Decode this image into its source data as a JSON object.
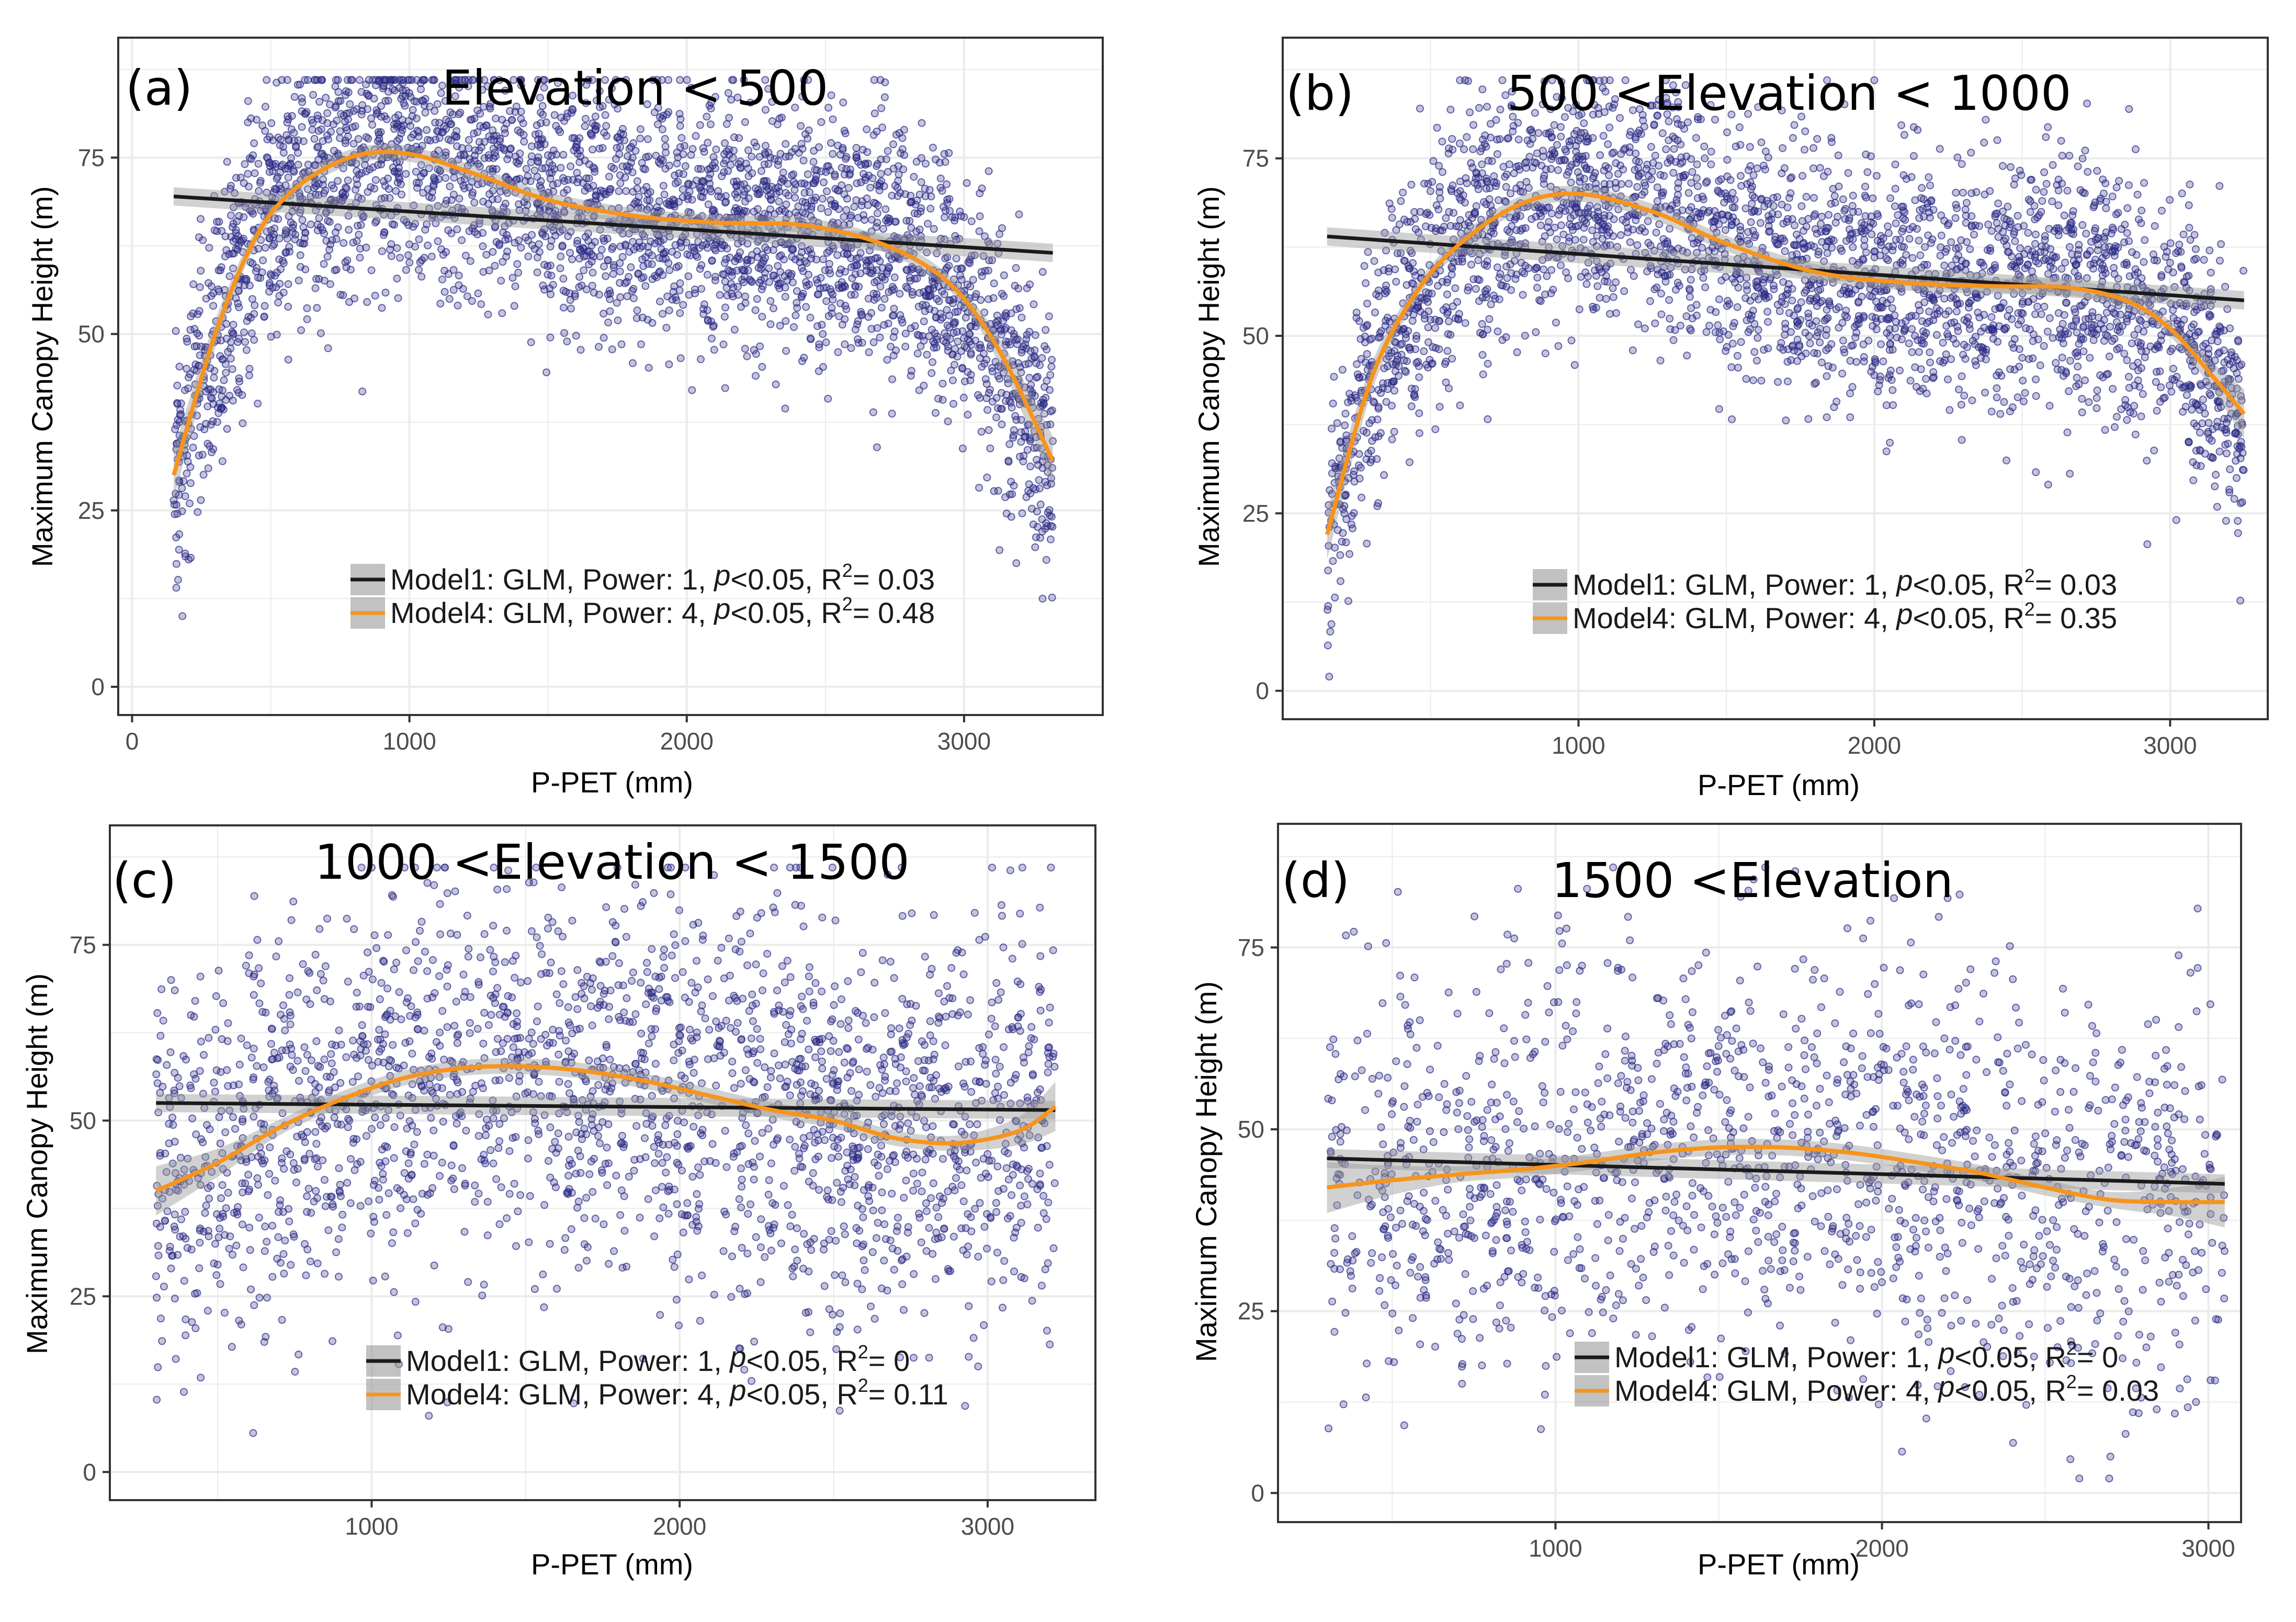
{
  "figure": {
    "colors": {
      "points": "#2b2b86",
      "model1_line": "#1a1a1a",
      "model4_line": "#f7941d",
      "ci_band": "#9a9a9a",
      "grid": "#ebebeb",
      "panel_border": "#333333"
    }
  },
  "chart_data": [
    {
      "type": "scatter",
      "tag": "(a)",
      "title": "Elevation < 500",
      "xlabel": "P-PET (mm)",
      "ylabel": "Maximum Canopy Height (m)",
      "xlim": [
        -50,
        3500
      ],
      "ylim": [
        -4,
        92
      ],
      "xticks": [
        0,
        1000,
        2000,
        3000
      ],
      "yticks": [
        0,
        25,
        50,
        75
      ],
      "x_range": [
        150,
        3320
      ],
      "model1_line": {
        "x": [
          150,
          3320
        ],
        "y": [
          69.5,
          61.5
        ]
      },
      "model4_curve": {
        "x": [
          150,
          300,
          450,
          600,
          800,
          1000,
          1250,
          1500,
          1800,
          2100,
          2400,
          2650,
          2850,
          3000,
          3150,
          3320
        ],
        "y": [
          30,
          50,
          64,
          71,
          75.2,
          75.5,
          72.5,
          69,
          66.8,
          65.8,
          65.5,
          63.5,
          60,
          55,
          46,
          32
        ]
      },
      "point_count": 3200,
      "legend": [
        {
          "model": "Model1: GLM, Power: 1,",
          "p_label": "p",
          "p_value": "<0.05,",
          "r2_label": "R",
          "r2_sup": "2",
          "r2_value": "= 0.03"
        },
        {
          "model": "Model4: GLM, Power: 4,",
          "p_label": "p",
          "p_value": "<0.05,",
          "r2_label": "R",
          "r2_sup": "2",
          "r2_value": "= 0.48"
        }
      ]
    },
    {
      "type": "scatter",
      "tag": "(b)",
      "title": "500 <Elevation < 1000",
      "xlabel": "P-PET (mm)",
      "ylabel": "Maximum Canopy Height (m)",
      "xlim": [
        0,
        3330
      ],
      "ylim": [
        -4,
        92
      ],
      "xticks": [
        1000,
        2000,
        3000
      ],
      "yticks": [
        0,
        25,
        50,
        75
      ],
      "x_range": [
        150,
        3250
      ],
      "model1_line": {
        "x": [
          150,
          3250
        ],
        "y": [
          64,
          55
        ]
      },
      "model4_curve": {
        "x": [
          150,
          300,
          450,
          600,
          800,
          1000,
          1250,
          1500,
          1800,
          2100,
          2400,
          2650,
          2850,
          3000,
          3150,
          3250
        ],
        "y": [
          22,
          44,
          56,
          63,
          68.5,
          70,
          67.5,
          63,
          59,
          57.5,
          57,
          56.8,
          55,
          51,
          44,
          39
        ]
      },
      "point_count": 3000,
      "legend": [
        {
          "model": "Model1: GLM, Power: 1,",
          "p_label": "p",
          "p_value": "<0.05,",
          "r2_label": "R",
          "r2_sup": "2",
          "r2_value": "= 0.03"
        },
        {
          "model": "Model4: GLM, Power: 4,",
          "p_label": "p",
          "p_value": "<0.05,",
          "r2_label": "R",
          "r2_sup": "2",
          "r2_value": "= 0.35"
        }
      ]
    },
    {
      "type": "scatter",
      "tag": "(c)",
      "title": "1000 <Elevation < 1500",
      "xlabel": "P-PET (mm)",
      "ylabel": "Maximum Canopy Height (m)",
      "xlim": [
        150,
        3350
      ],
      "ylim": [
        -4,
        92
      ],
      "xticks": [
        1000,
        2000,
        3000
      ],
      "yticks": [
        0,
        25,
        50,
        75
      ],
      "x_range": [
        300,
        3220
      ],
      "model1_line": {
        "x": [
          300,
          3220
        ],
        "y": [
          52.5,
          51.5
        ]
      },
      "model4_curve": {
        "x": [
          300,
          500,
          700,
          900,
          1100,
          1300,
          1500,
          1700,
          1900,
          2100,
          2300,
          2500,
          2700,
          2900,
          3100,
          3220
        ],
        "y": [
          40,
          44,
          49,
          53,
          56,
          57.5,
          57.7,
          57,
          55.5,
          53.5,
          51.5,
          50,
          47.5,
          46.8,
          48.5,
          52
        ]
      },
      "point_count": 2200,
      "legend": [
        {
          "model": "Model1: GLM, Power: 1,",
          "p_label": "p",
          "p_value": "<0.05,",
          "r2_label": "R",
          "r2_sup": "2",
          "r2_value": "= 0"
        },
        {
          "model": "Model4: GLM, Power: 4,",
          "p_label": "p",
          "p_value": "<0.05,",
          "r2_label": "R",
          "r2_sup": "2",
          "r2_value": "= 0.11"
        }
      ]
    },
    {
      "type": "scatter",
      "tag": "(d)",
      "title": "1500 <Elevation",
      "xlabel": "P-PET (mm)",
      "ylabel": "Maximum Canopy Height (m)",
      "xlim": [
        150,
        3100
      ],
      "ylim": [
        -4,
        92
      ],
      "xticks": [
        1000,
        2000,
        3000
      ],
      "yticks": [
        0,
        25,
        50,
        75
      ],
      "x_range": [
        300,
        3050
      ],
      "model1_line": {
        "x": [
          300,
          3050
        ],
        "y": [
          46,
          42.5
        ]
      },
      "model4_curve": {
        "x": [
          300,
          500,
          700,
          900,
          1100,
          1300,
          1500,
          1700,
          1900,
          2100,
          2300,
          2500,
          2700,
          2900,
          3050
        ],
        "y": [
          42,
          43,
          43.8,
          44.5,
          45.5,
          46.8,
          47.5,
          47.5,
          46.8,
          45.5,
          44,
          42,
          40.3,
          40,
          40
        ]
      },
      "point_count": 1500,
      "legend": [
        {
          "model": "Model1: GLM, Power: 1,",
          "p_label": "p",
          "p_value": "<0.05,",
          "r2_label": "R",
          "r2_sup": "2",
          "r2_value": "= 0"
        },
        {
          "model": "Model4: GLM, Power: 4,",
          "p_label": "p",
          "p_value": "<0.05,",
          "r2_label": "R",
          "r2_sup": "2",
          "r2_value": "= 0.03"
        }
      ]
    }
  ]
}
